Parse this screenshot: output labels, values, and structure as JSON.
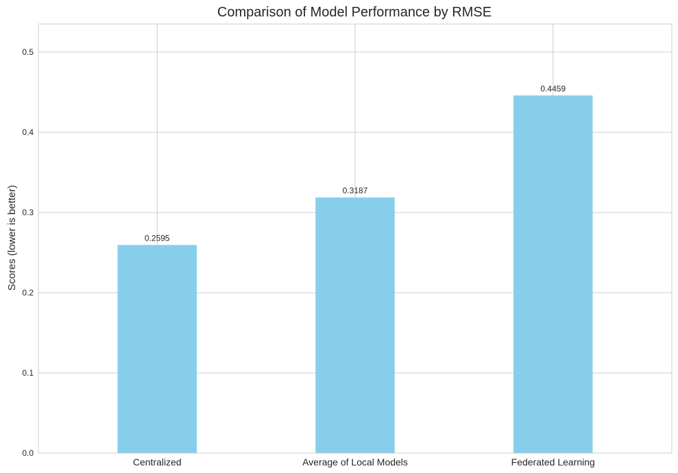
{
  "chart_data": {
    "type": "bar",
    "title": "Comparison of Model Performance by RMSE",
    "xlabel": "",
    "ylabel": "Scores (lower is better)",
    "categories": [
      "Centralized",
      "Average of Local Models",
      "Federated Learning"
    ],
    "values": [
      0.2595,
      0.3187,
      0.4459
    ],
    "value_labels": [
      "0.2595",
      "0.3187",
      "0.4459"
    ],
    "ylim": [
      0,
      0.535
    ],
    "yticks": [
      0.0,
      0.1,
      0.2,
      0.3,
      0.4,
      0.5
    ],
    "ytick_labels": [
      "0.0",
      "0.1",
      "0.2",
      "0.3",
      "0.4",
      "0.5"
    ],
    "bar_color": "#87CEEB",
    "grid": true,
    "legend": "none"
  }
}
